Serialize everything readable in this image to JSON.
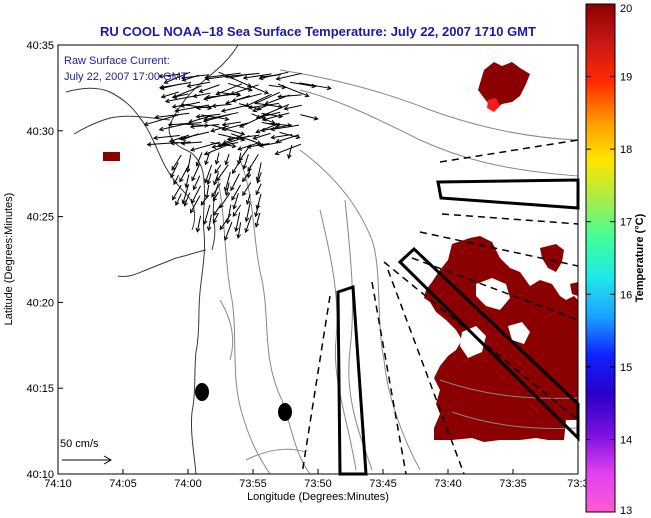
{
  "title": "RU COOL  NOAA–18  Sea Surface Temperature:  July 22, 2007 1710 GMT",
  "annotation": {
    "line1": "Raw Surface Current:",
    "line2": "July 22, 2007 17:00 GMT"
  },
  "scale_label": "50 cm/s",
  "colorbar": {
    "label": "Temperature (°C)",
    "ticks": [
      "20",
      "19",
      "18",
      "17",
      "16",
      "15",
      "14",
      "13"
    ],
    "colors": [
      "#8b0000",
      "#c81818",
      "#ff2a00",
      "#ff9a00",
      "#ffe600",
      "#a8ec4a",
      "#40ff9a",
      "#20e8e8",
      "#1aa2ff",
      "#1020ff",
      "#2a00c8",
      "#7a10e0",
      "#e040f0",
      "#ff5ad2"
    ]
  },
  "colors": {
    "land": "#ffffff",
    "water": "#ffffff",
    "sst": "#8b0000",
    "coast": "#555555",
    "vectors": "#000000",
    "title": "#1a1aa8"
  },
  "chart_data": {
    "type": "map",
    "title": "RU COOL  NOAA–18  Sea Surface Temperature:  July 22, 2007 1710 GMT",
    "xlabel": "Longitude (Degrees:Minutes)",
    "ylabel": "Latitude (Degrees:Minutes)",
    "x_ticks": [
      "74:10",
      "74:05",
      "74:00",
      "73:55",
      "73:50",
      "73:45",
      "73:40",
      "73:35",
      "73:3"
    ],
    "y_ticks": [
      "40:35",
      "40:30",
      "40:25",
      "40:20",
      "40:15",
      "40:10"
    ],
    "colorbar_range": [
      13,
      20
    ],
    "colorbar_label": "Temperature (°C)"
  }
}
